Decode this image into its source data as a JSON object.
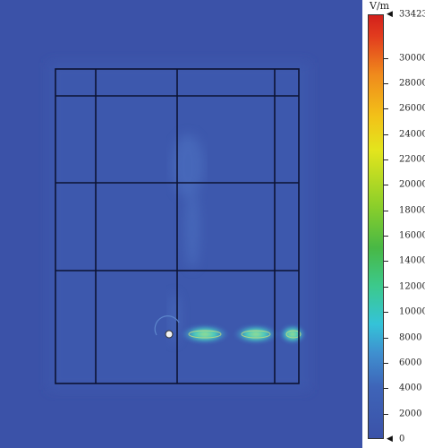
{
  "colorbar": {
    "unit": "V/m",
    "max_label": "33423",
    "min_label": "0",
    "max_value": 33423,
    "ticks": [
      "30000",
      "28000",
      "26000",
      "24000",
      "22000",
      "20000",
      "18000",
      "16000",
      "14000",
      "12000",
      "10000",
      "8000",
      "6000",
      "4000",
      "2000"
    ]
  },
  "colors": {
    "background_field": "#3b52a8",
    "grid_lines": "#0d1333",
    "hotspot": "#7fd8b4"
  },
  "grid": {
    "columns": 4,
    "rows": 4
  }
}
